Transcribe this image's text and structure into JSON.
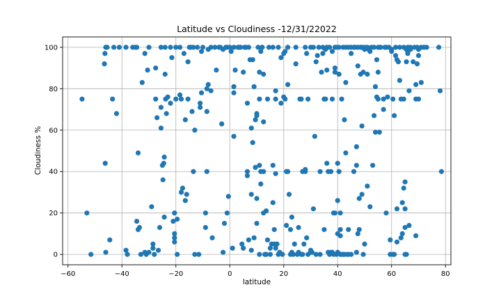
{
  "chart_data": {
    "type": "scatter",
    "title": "Latitude vs Cloudiness -12/31/22022",
    "xlabel": "latitude",
    "ylabel": "Cloudiness %",
    "xlim": [
      -62,
      82
    ],
    "ylim": [
      -5,
      105
    ],
    "xticks": [
      -60,
      -40,
      -20,
      0,
      20,
      40,
      60,
      80
    ],
    "yticks": [
      0,
      20,
      40,
      60,
      80,
      100
    ],
    "grid": true,
    "color": "#1f77b4",
    "points": [
      [
        -54.8,
        75
      ],
      [
        -53,
        20
      ],
      [
        -51.5,
        0
      ],
      [
        -46.5,
        92
      ],
      [
        -46.3,
        97
      ],
      [
        -46,
        100
      ],
      [
        -45.5,
        100
      ],
      [
        -46.2,
        44
      ],
      [
        -46,
        1
      ],
      [
        -44.5,
        7
      ],
      [
        -43.5,
        75
      ],
      [
        -43,
        100
      ],
      [
        -42,
        68
      ],
      [
        -41,
        100
      ],
      [
        -38.5,
        100
      ],
      [
        -38.5,
        2
      ],
      [
        -38,
        0
      ],
      [
        -36,
        100
      ],
      [
        -35,
        100
      ],
      [
        -34.5,
        100
      ],
      [
        -34.5,
        16
      ],
      [
        -34,
        49
      ],
      [
        -34,
        12
      ],
      [
        -33.5,
        13
      ],
      [
        -33,
        0
      ],
      [
        -32.5,
        83
      ],
      [
        -31.5,
        1
      ],
      [
        -31.5,
        97
      ],
      [
        -31,
        0
      ],
      [
        -30.5,
        89
      ],
      [
        -30,
        100
      ],
      [
        -30,
        1
      ],
      [
        -29,
        23
      ],
      [
        -28.5,
        5
      ],
      [
        -28.5,
        3
      ],
      [
        -28,
        0
      ],
      [
        -27.5,
        90
      ],
      [
        -27.5,
        75
      ],
      [
        -27,
        66
      ],
      [
        -26.5,
        2
      ],
      [
        -26,
        13
      ],
      [
        -25.5,
        100
      ],
      [
        -25.5,
        71
      ],
      [
        -25.5,
        61
      ],
      [
        -25,
        43
      ],
      [
        -24.8,
        36
      ],
      [
        -24.5,
        44
      ],
      [
        -24.3,
        47
      ],
      [
        -24.3,
        18
      ],
      [
        -24,
        100
      ],
      [
        -24,
        87
      ],
      [
        -23.8,
        75
      ],
      [
        -23.5,
        68
      ],
      [
        -23,
        76
      ],
      [
        -22,
        100
      ],
      [
        -22,
        73
      ],
      [
        -21.5,
        95
      ],
      [
        -21,
        16
      ],
      [
        -20.5,
        20
      ],
      [
        -20.5,
        10
      ],
      [
        -20.5,
        8
      ],
      [
        -20.5,
        6
      ],
      [
        -20,
        100
      ],
      [
        -20,
        75
      ],
      [
        -19.5,
        17
      ],
      [
        -19.5,
        0
      ],
      [
        -18.5,
        100
      ],
      [
        -18.5,
        77
      ],
      [
        -18,
        30
      ],
      [
        -18,
        75
      ],
      [
        -17.5,
        32
      ],
      [
        -17,
        97
      ],
      [
        -16.5,
        26
      ],
      [
        -16.5,
        65
      ],
      [
        -16,
        29
      ],
      [
        -15.5,
        93
      ],
      [
        -15.5,
        75
      ],
      [
        -15,
        100
      ],
      [
        -14.5,
        100
      ],
      [
        -14,
        69
      ],
      [
        -13.5,
        100
      ],
      [
        -13.5,
        40
      ],
      [
        -13,
        60
      ],
      [
        -13,
        0
      ],
      [
        -12,
        100
      ],
      [
        -11.5,
        0
      ],
      [
        -11,
        71
      ],
      [
        -11,
        73
      ],
      [
        -10.5,
        78
      ],
      [
        -10.5,
        98
      ],
      [
        -10,
        100
      ],
      [
        -9,
        20
      ],
      [
        -9,
        13
      ],
      [
        -8.5,
        80
      ],
      [
        -8.5,
        40
      ],
      [
        -8.5,
        69
      ],
      [
        -8,
        82
      ],
      [
        -8,
        99
      ],
      [
        -7,
        100
      ],
      [
        -7,
        79
      ],
      [
        -6.5,
        8
      ],
      [
        -5.5,
        100
      ],
      [
        -5,
        89
      ],
      [
        -4,
        100
      ],
      [
        -3.5,
        100
      ],
      [
        -3,
        63
      ],
      [
        -2.5,
        1
      ],
      [
        -2.5,
        99
      ],
      [
        -2,
        15
      ],
      [
        -1.5,
        100
      ],
      [
        -1,
        100
      ],
      [
        -1,
        20
      ],
      [
        -0.5,
        28
      ],
      [
        0,
        100
      ],
      [
        0.5,
        98
      ],
      [
        1,
        3
      ],
      [
        1.5,
        100
      ],
      [
        1.5,
        78
      ],
      [
        1.5,
        81
      ],
      [
        1.5,
        57
      ],
      [
        2,
        89
      ],
      [
        3,
        100
      ],
      [
        3.5,
        100
      ],
      [
        4,
        100
      ],
      [
        4.5,
        5
      ],
      [
        5,
        88
      ],
      [
        5,
        3
      ],
      [
        5.5,
        100
      ],
      [
        6,
        100
      ],
      [
        6.5,
        73
      ],
      [
        6.5,
        40
      ],
      [
        6.5,
        38
      ],
      [
        7,
        7
      ],
      [
        7,
        100
      ],
      [
        7.5,
        94
      ],
      [
        8,
        61
      ],
      [
        8,
        29
      ],
      [
        8,
        2
      ],
      [
        8.5,
        54
      ],
      [
        8.5,
        94
      ],
      [
        9,
        81
      ],
      [
        9,
        8
      ],
      [
        9.5,
        65
      ],
      [
        9.5,
        42
      ],
      [
        10,
        67
      ],
      [
        10,
        68
      ],
      [
        10,
        15
      ],
      [
        10,
        27
      ],
      [
        10.5,
        100
      ],
      [
        11,
        0
      ],
      [
        11,
        75
      ],
      [
        11,
        88
      ],
      [
        11,
        43
      ],
      [
        11.5,
        40
      ],
      [
        11.5,
        34
      ],
      [
        11.5,
        98
      ],
      [
        12,
        100
      ],
      [
        12,
        100
      ],
      [
        12.5,
        87
      ],
      [
        12.5,
        64
      ],
      [
        12.5,
        40
      ],
      [
        12.5,
        20
      ],
      [
        13,
        0
      ],
      [
        13.5,
        0
      ],
      [
        13.5,
        21
      ],
      [
        14,
        7
      ],
      [
        14,
        75
      ],
      [
        14.5,
        100
      ],
      [
        15,
        0
      ],
      [
        15,
        3
      ],
      [
        15.5,
        5
      ],
      [
        16,
        25
      ],
      [
        16,
        43
      ],
      [
        16,
        100
      ],
      [
        16.5,
        12
      ],
      [
        16.5,
        5
      ],
      [
        17,
        39
      ],
      [
        17,
        75
      ],
      [
        17,
        79
      ],
      [
        17,
        3
      ],
      [
        17.5,
        5
      ],
      [
        18,
        100
      ],
      [
        18,
        0
      ],
      [
        18.5,
        1
      ],
      [
        19,
        95
      ],
      [
        19,
        73
      ],
      [
        19.5,
        0
      ],
      [
        20,
        97
      ],
      [
        20,
        76
      ],
      [
        20.5,
        98
      ],
      [
        20.5,
        75
      ],
      [
        21,
        40
      ],
      [
        21,
        14
      ],
      [
        21.5,
        40
      ],
      [
        21.5,
        100
      ],
      [
        21.5,
        82
      ],
      [
        22,
        29
      ],
      [
        22.5,
        12
      ],
      [
        22.5,
        0
      ],
      [
        23,
        1
      ],
      [
        23,
        18
      ],
      [
        23.5,
        0
      ],
      [
        24,
        5
      ],
      [
        24.5,
        100
      ],
      [
        24.5,
        92
      ],
      [
        25,
        0
      ],
      [
        25.5,
        1
      ],
      [
        25.5,
        13
      ],
      [
        26,
        75
      ],
      [
        26.5,
        0
      ],
      [
        26.5,
        75
      ],
      [
        27,
        40
      ],
      [
        27,
        0
      ],
      [
        27.5,
        5
      ],
      [
        28,
        100
      ],
      [
        28,
        41
      ],
      [
        28,
        40
      ],
      [
        28.5,
        97
      ],
      [
        28.5,
        8
      ],
      [
        29,
        75
      ],
      [
        29,
        0
      ],
      [
        30,
        1
      ],
      [
        30,
        2
      ],
      [
        30,
        100
      ],
      [
        30.5,
        1
      ],
      [
        31,
        100
      ],
      [
        31,
        22
      ],
      [
        31.5,
        57
      ],
      [
        32,
        93
      ],
      [
        32,
        0
      ],
      [
        32.5,
        96
      ],
      [
        33,
        100
      ],
      [
        33.5,
        40
      ],
      [
        33.5,
        0
      ],
      [
        34,
        88
      ],
      [
        34.5,
        100
      ],
      [
        34.5,
        97
      ],
      [
        35,
        75
      ],
      [
        35,
        12
      ],
      [
        35.5,
        99
      ],
      [
        35.5,
        75
      ],
      [
        36,
        89
      ],
      [
        36,
        100
      ],
      [
        36,
        44
      ],
      [
        36.5,
        40
      ],
      [
        36.5,
        1
      ],
      [
        37,
        100
      ],
      [
        37,
        0
      ],
      [
        37.5,
        1
      ],
      [
        37.5,
        40
      ],
      [
        38,
        98
      ],
      [
        38,
        75
      ],
      [
        38,
        1
      ],
      [
        38.5,
        0
      ],
      [
        38.5,
        20
      ],
      [
        39,
        100
      ],
      [
        39,
        20
      ],
      [
        39,
        90
      ],
      [
        39,
        88
      ],
      [
        39.5,
        0
      ],
      [
        39.5,
        100
      ],
      [
        40,
        1
      ],
      [
        40,
        26
      ],
      [
        40,
        10
      ],
      [
        40,
        44
      ],
      [
        40.5,
        100
      ],
      [
        40.5,
        87
      ],
      [
        40.5,
        40
      ],
      [
        41,
        9
      ],
      [
        41,
        12
      ],
      [
        41,
        20
      ],
      [
        41,
        0
      ],
      [
        41.5,
        75
      ],
      [
        41.5,
        0
      ],
      [
        42,
        100
      ],
      [
        42,
        0
      ],
      [
        42.5,
        65
      ],
      [
        42.5,
        0
      ],
      [
        43,
        100
      ],
      [
        43,
        49
      ],
      [
        43,
        83
      ],
      [
        43.5,
        0
      ],
      [
        44,
        12
      ],
      [
        44,
        100
      ],
      [
        44,
        0
      ],
      [
        45,
        97
      ],
      [
        45,
        100
      ],
      [
        45,
        0
      ],
      [
        46,
        100
      ],
      [
        46,
        40
      ],
      [
        46.5,
        100
      ],
      [
        47,
        1
      ],
      [
        47,
        43
      ],
      [
        47,
        52
      ],
      [
        47.5,
        10
      ],
      [
        47.5,
        91
      ],
      [
        47.5,
        100
      ],
      [
        48,
        27
      ],
      [
        48,
        12
      ],
      [
        48.5,
        100
      ],
      [
        48.5,
        87
      ],
      [
        49,
        100
      ],
      [
        49,
        62
      ],
      [
        49,
        29
      ],
      [
        49.5,
        88
      ],
      [
        49.5,
        0
      ],
      [
        50,
        5
      ],
      [
        50,
        100
      ],
      [
        50,
        99
      ],
      [
        51,
        87
      ],
      [
        51,
        100
      ],
      [
        51,
        33
      ],
      [
        51.5,
        99
      ],
      [
        52,
        98
      ],
      [
        52,
        23
      ],
      [
        52.5,
        100
      ],
      [
        53,
        43
      ],
      [
        53.5,
        100
      ],
      [
        53.5,
        67
      ],
      [
        54,
        81
      ],
      [
        54,
        59
      ],
      [
        54.5,
        94
      ],
      [
        54.5,
        76
      ],
      [
        55,
        100
      ],
      [
        55,
        75
      ],
      [
        55,
        88
      ],
      [
        55.5,
        59
      ],
      [
        55.5,
        100
      ],
      [
        56,
        100
      ],
      [
        57,
        75
      ],
      [
        57,
        70
      ],
      [
        57.5,
        100
      ],
      [
        58,
        100
      ],
      [
        58,
        20
      ],
      [
        58.5,
        76
      ],
      [
        59,
        100
      ],
      [
        59.5,
        7
      ],
      [
        59.5,
        0
      ],
      [
        60,
        99
      ],
      [
        60,
        98
      ],
      [
        60.5,
        75
      ],
      [
        60.5,
        0
      ],
      [
        61,
        67
      ],
      [
        61,
        0
      ],
      [
        61.5,
        100
      ],
      [
        61.5,
        96
      ],
      [
        62,
        94
      ],
      [
        62,
        6
      ],
      [
        62,
        22
      ],
      [
        62.5,
        93
      ],
      [
        63,
        84
      ],
      [
        63,
        100
      ],
      [
        63.5,
        75
      ],
      [
        63.5,
        8
      ],
      [
        64,
        25
      ],
      [
        64,
        10
      ],
      [
        64.5,
        32
      ],
      [
        64.5,
        100
      ],
      [
        64.5,
        75
      ],
      [
        65,
        13
      ],
      [
        65,
        22
      ],
      [
        65,
        35
      ],
      [
        65,
        0
      ],
      [
        65.5,
        93
      ],
      [
        65.5,
        0
      ],
      [
        65.5,
        99
      ],
      [
        66,
        97
      ],
      [
        66,
        100
      ],
      [
        66,
        98
      ],
      [
        66.5,
        79
      ],
      [
        66.5,
        14
      ],
      [
        67,
        100
      ],
      [
        67,
        99
      ],
      [
        68,
        93
      ],
      [
        68.5,
        100
      ],
      [
        69,
        75
      ],
      [
        69,
        9
      ],
      [
        69,
        82
      ],
      [
        69.5,
        100
      ],
      [
        69.5,
        92
      ],
      [
        70,
        96
      ],
      [
        70,
        99
      ],
      [
        70,
        75
      ],
      [
        71,
        100
      ],
      [
        71,
        83
      ],
      [
        72,
        100
      ],
      [
        73,
        100
      ],
      [
        77.5,
        100
      ],
      [
        78,
        79
      ],
      [
        78.5,
        40
      ]
    ]
  }
}
